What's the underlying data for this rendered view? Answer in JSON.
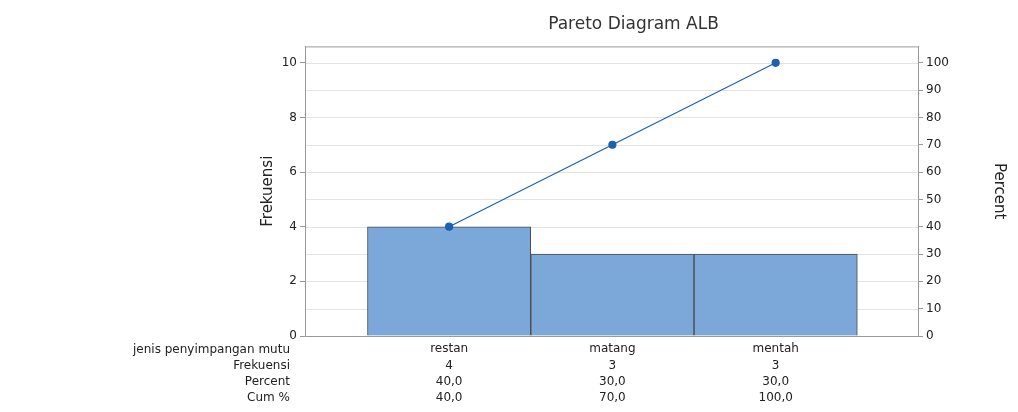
{
  "chart_data": {
    "type": "bar",
    "title": "Pareto Diagram ALB",
    "xlabel": "jenis penyimpangan mutu",
    "ylabel": "Frekuensi",
    "y2label": "Percent",
    "categories": [
      "restan",
      "matang",
      "mentah"
    ],
    "series": [
      {
        "color": "#7ba7d9",
        "values": [
          4,
          3,
          3
        ],
        "value_labels": [
          "4",
          "3",
          "3"
        ]
      },
      {
        "type": "line",
        "axis": "y2",
        "color": "#1f5fb0",
        "values": [
          40,
          70,
          100
        ],
        "value_labels": [
          "40,0",
          "70,0",
          "100,0"
        ]
      }
    ],
    "annotations": [
      "Frekuensi",
      "Percent",
      "Cum %",
      "40,0",
      "30,0",
      "30,0"
    ],
    "ylim": [
      0,
      10.6
    ],
    "yticks": [
      0,
      2,
      4,
      6,
      8,
      10
    ],
    "y2lim": [
      0,
      106
    ],
    "y2ticks": [
      0,
      10,
      20,
      30,
      40,
      50,
      60,
      70,
      80,
      90,
      100
    ],
    "grid": "y2",
    "legend": false,
    "marker": "circle",
    "line_style": "solid"
  }
}
